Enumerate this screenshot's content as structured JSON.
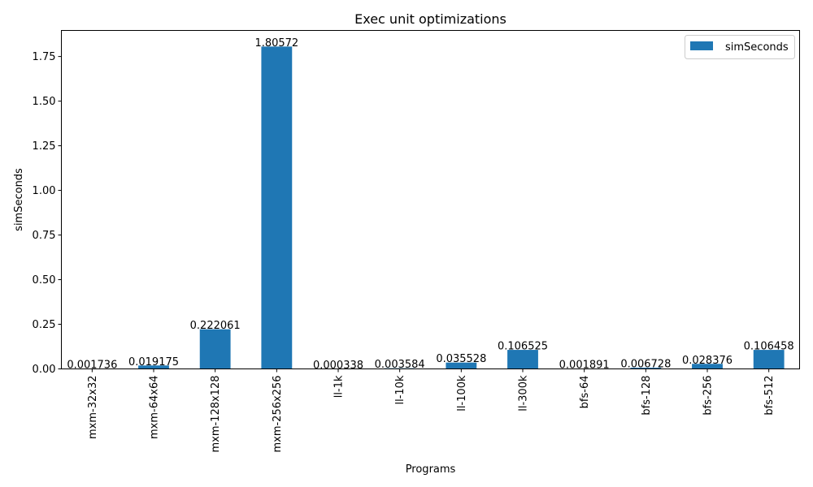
{
  "chart_data": {
    "type": "bar",
    "title": "Exec unit optimizations",
    "xlabel": "Programs",
    "ylabel": "simSeconds",
    "categories": [
      "mxm-32x32",
      "mxm-64x64",
      "mxm-128x128",
      "mxm-256x256",
      "ll-1k",
      "ll-10k",
      "ll-100k",
      "ll-300k",
      "bfs-64",
      "bfs-128",
      "bfs-256",
      "bfs-512"
    ],
    "series": [
      {
        "name": "simSeconds",
        "values": [
          0.001736,
          0.019175,
          0.222061,
          1.80572,
          0.000338,
          0.003584,
          0.035528,
          0.106525,
          0.001891,
          0.006728,
          0.028376,
          0.106458
        ],
        "labels": [
          "0.001736",
          "0.019175",
          "0.222061",
          "1.80572",
          "0.000338",
          "0.003584",
          "0.035528",
          "0.106525",
          "0.001891",
          "0.006728",
          "0.028376",
          "0.106458"
        ]
      }
    ],
    "yticks": [
      0.0,
      0.25,
      0.5,
      0.75,
      1.0,
      1.25,
      1.5,
      1.75
    ],
    "ytick_labels": [
      "0.00",
      "0.25",
      "0.50",
      "0.75",
      "1.00",
      "1.25",
      "1.50",
      "1.75"
    ],
    "ylim": [
      0,
      1.896
    ],
    "grid": false,
    "legend_position": "upper-right",
    "bar_color": "#1f77b4"
  }
}
